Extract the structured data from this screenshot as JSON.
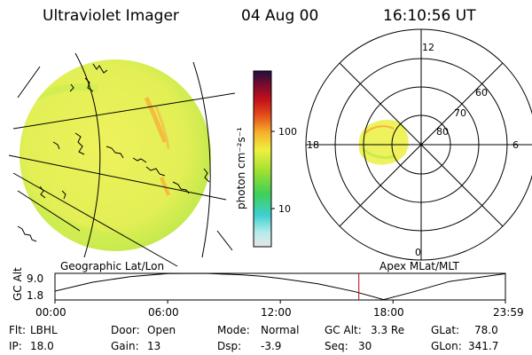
{
  "header": {
    "instrument": "Ultraviolet Imager",
    "date": "04 Aug 00",
    "time": "16:10:56 UT"
  },
  "colorbar": {
    "unit_label": "photon cm⁻²s⁻¹",
    "tick_labels": [
      "100",
      "10"
    ],
    "scale": "log",
    "range": [
      3,
      1000
    ],
    "colors": [
      "#e6e6e6",
      "#b7ecec",
      "#3fcfd0",
      "#3fcf58",
      "#9fe030",
      "#eef040",
      "#f6b02a",
      "#e44a1a",
      "#c0101a",
      "#7a0a30",
      "#201040"
    ]
  },
  "left_panel": {
    "caption": "Geographic Lat/Lon",
    "fill_colors": [
      "#eef25c",
      "#c9ec4e",
      "#f6b43a"
    ]
  },
  "right_panel": {
    "caption": "Apex MLat/MLT",
    "mlt_labels": {
      "top": "12",
      "left": "18",
      "right": "6",
      "bottom": "0"
    },
    "lat_labels": [
      "60",
      "70",
      "80"
    ],
    "rings_deg": [
      40,
      30,
      20,
      10
    ]
  },
  "altitude": {
    "ylabel": "GC Alt",
    "y_ticks": [
      "9.0",
      "1.8"
    ],
    "ylim": [
      1.8,
      9.0
    ],
    "x_ticks": [
      "00:00",
      "06:00",
      "12:00",
      "18:00",
      "23:59"
    ],
    "xlim_hours": [
      0,
      23.983
    ],
    "current_time_hours": 16.18,
    "marker_color": "#c00000"
  },
  "status": {
    "flt_label": "Flt:",
    "flt_value": "LBHL",
    "door_label": "Door:",
    "door_value": "Open",
    "mode_label": "Mode:",
    "mode_value": "Normal",
    "gcalt_label": "GC Alt:",
    "gcalt_value": "3.3 Re",
    "glat_label": "GLat:",
    "glat_value": "78.0",
    "ip_label": "IP:",
    "ip_value": "18.0",
    "gain_label": "Gain:",
    "gain_value": "13",
    "dsp_label": "Dsp:",
    "dsp_value": "-3.9",
    "seq_label": "Seq:",
    "seq_value": "30",
    "glon_label": "GLon:",
    "glon_value": "341.7"
  },
  "chart_data": [
    {
      "type": "line",
      "title": "",
      "xlabel": "",
      "ylabel": "GC Alt",
      "xlim": [
        0,
        23.983
      ],
      "ylim": [
        1.8,
        9.0
      ],
      "series": [
        {
          "x": [
            0,
            2,
            4,
            6,
            8,
            10,
            11,
            12,
            14,
            16,
            17.5,
            19,
            21,
            23.983
          ],
          "values": [
            4.2,
            6.6,
            8.1,
            8.95,
            9.0,
            8.6,
            8.2,
            7.6,
            6.2,
            4.0,
            1.9,
            3.9,
            6.8,
            8.9
          ]
        }
      ],
      "markers": [
        16.18
      ]
    },
    {
      "type": "heatmap",
      "title": "",
      "colorbar_label": "photon cm⁻²s⁻¹",
      "scale": "log",
      "range": [
        3,
        1000
      ],
      "colorbar_ticks": [
        10,
        100
      ]
    }
  ]
}
